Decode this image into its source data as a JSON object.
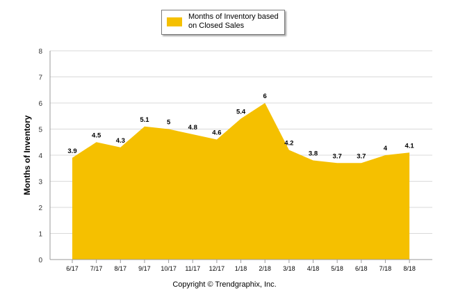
{
  "chart_data": {
    "type": "area",
    "categories": [
      "6/17",
      "7/17",
      "8/17",
      "9/17",
      "10/17",
      "11/17",
      "12/17",
      "1/18",
      "2/18",
      "3/18",
      "4/18",
      "5/18",
      "6/18",
      "7/18",
      "8/18"
    ],
    "series": [
      {
        "name": "Months of Inventory based on Closed Sales",
        "values": [
          3.9,
          4.5,
          4.3,
          5.1,
          5,
          4.8,
          4.6,
          5.4,
          6,
          4.2,
          3.8,
          3.7,
          3.7,
          4,
          4.1
        ]
      }
    ],
    "data_labels": [
      "3.9",
      "4.5",
      "4.3",
      "5.1",
      "5",
      "4.8",
      "4.6",
      "5.4",
      "6",
      "4.2",
      "3.8",
      "3.7",
      "3.7",
      "4",
      "4.1"
    ],
    "ylabel": "Months of Inventory",
    "xlabel": "",
    "ylim": [
      0,
      8
    ],
    "yticks": [
      "0",
      "1",
      "2",
      "3",
      "4",
      "5",
      "6",
      "7",
      "8"
    ],
    "grid": true,
    "legend_position": "top-center",
    "colors": {
      "area": "#f5c000",
      "grid": "#d9d9d9",
      "axis": "#9a9a9a"
    }
  },
  "legend": {
    "label": "Months of Inventory based on Closed Sales"
  },
  "footer": {
    "copyright": "Copyright © Trendgraphix, Inc."
  }
}
